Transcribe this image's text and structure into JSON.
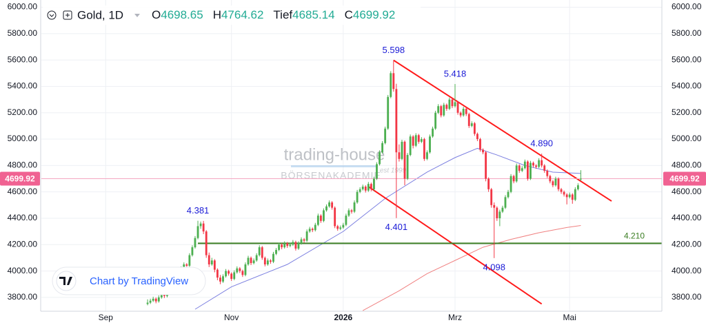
{
  "chart_data": {
    "type": "candlestick",
    "symbol": "Gold, 1D",
    "ohlc_labels": [
      "O",
      "H",
      "Tief",
      "C"
    ],
    "up_color": "#4caf50",
    "down_color": "#f23645",
    "xlim": [
      -38,
      184
    ],
    "ylim": [
      3695,
      6055
    ],
    "xticks": [
      {
        "value": -15,
        "label": "Sep"
      },
      {
        "value": 30,
        "label": "Nov"
      },
      {
        "value": 70,
        "label": "2026"
      },
      {
        "value": 110,
        "label": "Mrz"
      },
      {
        "value": 151,
        "label": "Mai"
      }
    ],
    "yticks": [
      {
        "value": 3800,
        "label": "3800.00"
      },
      {
        "value": 4000,
        "label": "4000.00"
      },
      {
        "value": 4200,
        "label": "4200.00"
      },
      {
        "value": 4400,
        "label": "4400.00"
      },
      {
        "value": 4600,
        "label": "4600.00"
      },
      {
        "value": 4800,
        "label": "4800.00"
      },
      {
        "value": 5000,
        "label": "5000.00"
      },
      {
        "value": 5200,
        "label": "5200.00"
      },
      {
        "value": 5400,
        "label": "5400.00"
      },
      {
        "value": 5600,
        "label": "5600.00"
      },
      {
        "value": 5800,
        "label": "5800.00"
      },
      {
        "value": 6000,
        "label": "6000.00"
      }
    ],
    "grid": true,
    "candles": [
      [
        3750,
        3785,
        3740,
        3760
      ],
      [
        3760,
        3790,
        3750,
        3775
      ],
      [
        3775,
        3805,
        3765,
        3790
      ],
      [
        3790,
        3800,
        3755,
        3770
      ],
      [
        3770,
        3815,
        3760,
        3800
      ],
      [
        3800,
        3835,
        3790,
        3820
      ],
      [
        3820,
        3830,
        3795,
        3810
      ],
      [
        3810,
        3865,
        3800,
        3850
      ],
      [
        3850,
        3885,
        3840,
        3870
      ],
      [
        3870,
        3905,
        3860,
        3890
      ],
      [
        3890,
        3975,
        3880,
        3960
      ],
      [
        3960,
        4005,
        3950,
        3990
      ],
      [
        3990,
        4035,
        3980,
        4020
      ],
      [
        4020,
        4065,
        4010,
        4050
      ],
      [
        4050,
        4060,
        4025,
        4040
      ],
      [
        4040,
        4135,
        4030,
        4120
      ],
      [
        4120,
        4195,
        4110,
        4180
      ],
      [
        4180,
        4265,
        4170,
        4250
      ],
      [
        4250,
        4381,
        4240,
        4340
      ],
      [
        4340,
        4375,
        4320,
        4360
      ],
      [
        4360,
        4380,
        4280,
        4300
      ],
      [
        4300,
        4310,
        4100,
        4120
      ],
      [
        4120,
        4140,
        4030,
        4050
      ],
      [
        4050,
        4100,
        4040,
        4080
      ],
      [
        4080,
        4090,
        3990,
        4010
      ],
      [
        4010,
        4020,
        3930,
        3950
      ],
      [
        3950,
        3970,
        3900,
        3920
      ],
      [
        3920,
        3975,
        3910,
        3960
      ],
      [
        3960,
        4015,
        3950,
        4000
      ],
      [
        4000,
        4010,
        3965,
        3980
      ],
      [
        3980,
        3990,
        3925,
        3940
      ],
      [
        3940,
        4005,
        3930,
        3990
      ],
      [
        3990,
        4035,
        3980,
        4020
      ],
      [
        4020,
        4030,
        3985,
        4000
      ],
      [
        4000,
        4010,
        3955,
        3970
      ],
      [
        3970,
        4065,
        3960,
        4050
      ],
      [
        4050,
        4115,
        4040,
        4100
      ],
      [
        4100,
        4110,
        4045,
        4060
      ],
      [
        4060,
        4095,
        4050,
        4080
      ],
      [
        4080,
        4135,
        4070,
        4120
      ],
      [
        4120,
        4195,
        4110,
        4180
      ],
      [
        4180,
        4190,
        4085,
        4100
      ],
      [
        4100,
        4110,
        4035,
        4050
      ],
      [
        4050,
        4095,
        4040,
        4080
      ],
      [
        4080,
        4090,
        4055,
        4070
      ],
      [
        4070,
        4145,
        4060,
        4130
      ],
      [
        4130,
        4175,
        4120,
        4160
      ],
      [
        4160,
        4215,
        4150,
        4200
      ],
      [
        4200,
        4210,
        4165,
        4180
      ],
      [
        4180,
        4225,
        4170,
        4210
      ],
      [
        4210,
        4220,
        4175,
        4190
      ],
      [
        4190,
        4215,
        4180,
        4200
      ],
      [
        4200,
        4235,
        4190,
        4220
      ],
      [
        4220,
        4230,
        4155,
        4170
      ],
      [
        4170,
        4225,
        4160,
        4210
      ],
      [
        4210,
        4255,
        4200,
        4240
      ],
      [
        4240,
        4250,
        4215,
        4230
      ],
      [
        4230,
        4315,
        4220,
        4300
      ],
      [
        4300,
        4335,
        4290,
        4320
      ],
      [
        4320,
        4330,
        4295,
        4310
      ],
      [
        4310,
        4365,
        4300,
        4350
      ],
      [
        4350,
        4435,
        4340,
        4420
      ],
      [
        4420,
        4430,
        4365,
        4380
      ],
      [
        4380,
        4475,
        4370,
        4460
      ],
      [
        4460,
        4505,
        4450,
        4490
      ],
      [
        4490,
        4535,
        4480,
        4520
      ],
      [
        4520,
        4530,
        4465,
        4480
      ],
      [
        4480,
        4490,
        4325,
        4340
      ],
      [
        4340,
        4350,
        4305,
        4320
      ],
      [
        4320,
        4345,
        4310,
        4330
      ],
      [
        4330,
        4365,
        4320,
        4350
      ],
      [
        4350,
        4435,
        4340,
        4420
      ],
      [
        4420,
        4475,
        4410,
        4460
      ],
      [
        4460,
        4470,
        4435,
        4450
      ],
      [
        4450,
        4535,
        4440,
        4520
      ],
      [
        4520,
        4615,
        4510,
        4600
      ],
      [
        4600,
        4635,
        4590,
        4620
      ],
      [
        4620,
        4655,
        4610,
        4640
      ],
      [
        4640,
        4650,
        4595,
        4610
      ],
      [
        4610,
        4675,
        4600,
        4660
      ],
      [
        4660,
        4670,
        4605,
        4620
      ],
      [
        4620,
        4715,
        4610,
        4700
      ],
      [
        4700,
        4825,
        4690,
        4810
      ],
      [
        4810,
        4915,
        4800,
        4900
      ],
      [
        4900,
        4985,
        4890,
        4970
      ],
      [
        4970,
        5095,
        4960,
        5080
      ],
      [
        5080,
        5335,
        5070,
        5320
      ],
      [
        5320,
        5515,
        5310,
        5500
      ],
      [
        5500,
        5598,
        5360,
        5380
      ],
      [
        5380,
        5420,
        4401,
        4900
      ],
      [
        4900,
        4960,
        4830,
        4850
      ],
      [
        4850,
        4995,
        4840,
        4980
      ],
      [
        4980,
        4990,
        4650,
        4700
      ],
      [
        4700,
        4895,
        4690,
        4880
      ],
      [
        4880,
        5035,
        4870,
        5020
      ],
      [
        5020,
        5030,
        4930,
        4950
      ],
      [
        4950,
        5045,
        4940,
        5030
      ],
      [
        5030,
        5040,
        4965,
        4980
      ],
      [
        4980,
        5015,
        4970,
        5000
      ],
      [
        5000,
        5010,
        4835,
        4850
      ],
      [
        4850,
        4915,
        4840,
        4900
      ],
      [
        4900,
        5035,
        4890,
        5020
      ],
      [
        5020,
        5095,
        5010,
        5080
      ],
      [
        5080,
        5215,
        5070,
        5200
      ],
      [
        5200,
        5265,
        5190,
        5250
      ],
      [
        5250,
        5260,
        5165,
        5180
      ],
      [
        5180,
        5275,
        5170,
        5260
      ],
      [
        5260,
        5270,
        5215,
        5230
      ],
      [
        5230,
        5315,
        5220,
        5300
      ],
      [
        5300,
        5310,
        5235,
        5250
      ],
      [
        5250,
        5418,
        5240,
        5280
      ],
      [
        5280,
        5290,
        5185,
        5200
      ],
      [
        5200,
        5210,
        5165,
        5180
      ],
      [
        5180,
        5245,
        5170,
        5230
      ],
      [
        5230,
        5240,
        5175,
        5190
      ],
      [
        5190,
        5200,
        5085,
        5100
      ],
      [
        5100,
        5135,
        5090,
        5120
      ],
      [
        5120,
        5130,
        5025,
        5040
      ],
      [
        5040,
        5050,
        4985,
        5000
      ],
      [
        5000,
        5010,
        4905,
        4920
      ],
      [
        4920,
        4930,
        4885,
        4900
      ],
      [
        4900,
        4910,
        4680,
        4700
      ],
      [
        4700,
        4710,
        4600,
        4620
      ],
      [
        4620,
        4630,
        4480,
        4500
      ],
      [
        4500,
        4520,
        4098,
        4480
      ],
      [
        4480,
        4490,
        4380,
        4400
      ],
      [
        4400,
        4465,
        4340,
        4450
      ],
      [
        4450,
        4495,
        4440,
        4480
      ],
      [
        4480,
        4575,
        4470,
        4560
      ],
      [
        4560,
        4615,
        4550,
        4600
      ],
      [
        4600,
        4735,
        4590,
        4720
      ],
      [
        4720,
        4730,
        4665,
        4680
      ],
      [
        4680,
        4815,
        4670,
        4800
      ],
      [
        4800,
        4810,
        4745,
        4760
      ],
      [
        4760,
        4795,
        4750,
        4780
      ],
      [
        4780,
        4845,
        4770,
        4830
      ],
      [
        4830,
        4840,
        4685,
        4700
      ],
      [
        4700,
        4835,
        4690,
        4820
      ],
      [
        4820,
        4830,
        4785,
        4800
      ],
      [
        4800,
        4810,
        4775,
        4790
      ],
      [
        4790,
        4855,
        4780,
        4840
      ],
      [
        4840,
        4890,
        4785,
        4800
      ],
      [
        4800,
        4810,
        4745,
        4760
      ],
      [
        4760,
        4770,
        4705,
        4720
      ],
      [
        4720,
        4730,
        4665,
        4680
      ],
      [
        4680,
        4690,
        4635,
        4650
      ],
      [
        4650,
        4715,
        4640,
        4700
      ],
      [
        4700,
        4710,
        4605,
        4620
      ],
      [
        4620,
        4630,
        4585,
        4600
      ],
      [
        4600,
        4610,
        4565,
        4580
      ],
      [
        4580,
        4590,
        4505,
        4560
      ],
      [
        4560,
        4595,
        4550,
        4580
      ],
      [
        4580,
        4590,
        4510,
        4540
      ],
      [
        4540,
        4635,
        4530,
        4620
      ],
      [
        4620,
        4665,
        4610,
        4650
      ],
      [
        4698.65,
        4764.62,
        4685.14,
        4699.92
      ]
    ],
    "lines": [
      {
        "color": "#7b7fe0",
        "x": [
          17,
          30,
          50,
          70,
          85,
          100,
          110,
          118,
          125,
          135,
          145,
          155
        ],
        "values": [
          3710,
          3880,
          4050,
          4300,
          4550,
          4750,
          4860,
          4930,
          4880,
          4800,
          4750,
          4740
        ]
      },
      {
        "color": "#f08080",
        "x": [
          77,
          90,
          100,
          110,
          120,
          130,
          140,
          150,
          155
        ],
        "values": [
          3700,
          3850,
          3980,
          4080,
          4180,
          4240,
          4290,
          4330,
          4345
        ]
      },
      {
        "color": "#ff1a1a",
        "x": [
          88,
          166
        ],
        "values": [
          5598,
          4530
        ]
      },
      {
        "color": "#ff1a1a",
        "x": [
          79,
          141
        ],
        "values": [
          4640,
          3750
        ]
      }
    ],
    "support": {
      "value": 4210,
      "label": "4.210",
      "from": 18,
      "color": "#3a7d22"
    },
    "annotations": [
      {
        "label": "4.381",
        "value": 4381,
        "index": 18,
        "pos": "above"
      },
      {
        "label": "5.598",
        "value": 5598,
        "index": 88,
        "pos": "above"
      },
      {
        "label": "5.418",
        "value": 5418,
        "index": 110,
        "pos": "above"
      },
      {
        "label": "4.890",
        "value": 4890,
        "index": 141,
        "pos": "above"
      },
      {
        "label": "4.401",
        "value": 4401,
        "index": 89,
        "pos": "below"
      },
      {
        "label": "4.098",
        "value": 4098,
        "index": 124,
        "pos": "below"
      }
    ],
    "watermark": [
      "trading-house",
      "BÖRSENAKADEMIE",
      "est 1999"
    ],
    "credit": "Chart by TradingView"
  }
}
